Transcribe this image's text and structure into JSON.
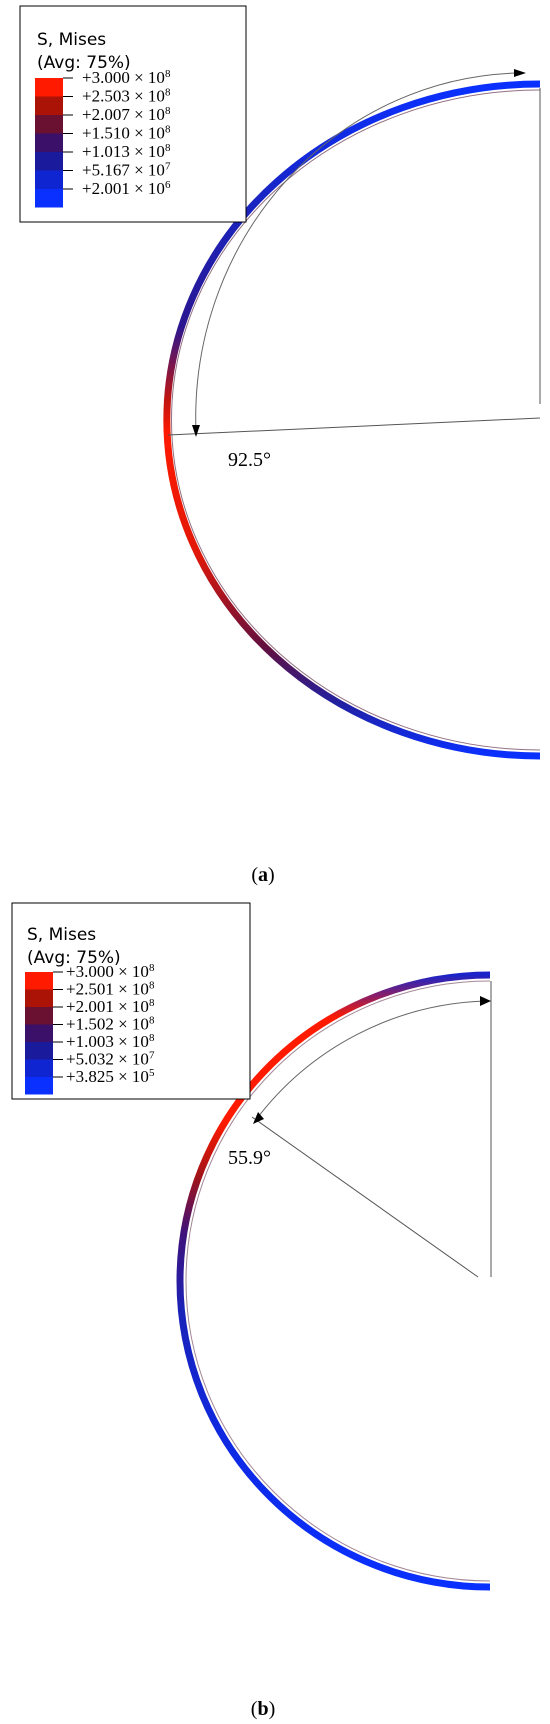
{
  "panels": [
    {
      "id": "a",
      "legend": {
        "title": "S, Mises",
        "subtitle": "(Avg: 75%)",
        "entries": [
          {
            "mantissa": "+3.000",
            "exponent": "8",
            "color": "#ff1a00"
          },
          {
            "mantissa": "+2.503",
            "exponent": "8",
            "color": "#aa1305"
          },
          {
            "mantissa": "+2.007",
            "exponent": "8",
            "color": "#6a1030"
          },
          {
            "mantissa": "+1.510",
            "exponent": "8",
            "color": "#3a1068"
          },
          {
            "mantissa": "+1.013",
            "exponent": "8",
            "color": "#1a1a9c"
          },
          {
            "mantissa": "+5.167",
            "exponent": "7",
            "color": "#0f25d2"
          },
          {
            "mantissa": "+2.001",
            "exponent": "6",
            "color": "#0a30ff"
          }
        ]
      },
      "angle_label": "92.5°",
      "caption_letter": "a"
    },
    {
      "id": "b",
      "legend": {
        "title": "S, Mises",
        "subtitle": "(Avg: 75%)",
        "entries": [
          {
            "mantissa": "+3.000",
            "exponent": "8",
            "color": "#ff1a00"
          },
          {
            "mantissa": "+2.501",
            "exponent": "8",
            "color": "#aa1305"
          },
          {
            "mantissa": "+2.001",
            "exponent": "8",
            "color": "#6a1030"
          },
          {
            "mantissa": "+1.502",
            "exponent": "8",
            "color": "#3a1068"
          },
          {
            "mantissa": "+1.003",
            "exponent": "8",
            "color": "#1a1a9c"
          },
          {
            "mantissa": "+5.032",
            "exponent": "7",
            "color": "#0f25d2"
          },
          {
            "mantissa": "+3.825",
            "exponent": "5",
            "color": "#0a30ff"
          }
        ]
      },
      "angle_label": "55.9°",
      "caption_letter": "b"
    }
  ],
  "colors": {
    "stress_high": "#ff1a00",
    "stress_low": "#0a30ff"
  }
}
